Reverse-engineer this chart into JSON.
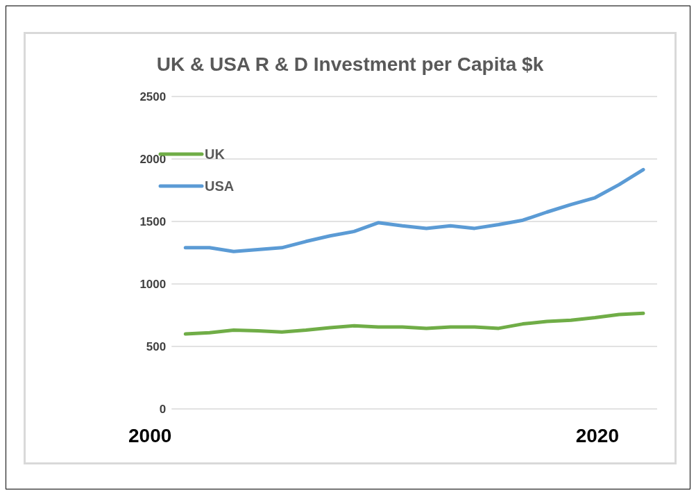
{
  "chart_data": {
    "type": "line",
    "title": "UK & USA R & D Investment per Capita $k",
    "categories": [
      null,
      null,
      null,
      null,
      null,
      null,
      null,
      null,
      null,
      null,
      null,
      null,
      null,
      null,
      null,
      null,
      null,
      null,
      null,
      null
    ],
    "series": [
      {
        "name": "UK",
        "color": "#70ad47",
        "values": [
          600,
          610,
          630,
          625,
          615,
          630,
          650,
          665,
          655,
          655,
          645,
          655,
          655,
          645,
          680,
          700,
          710,
          730,
          755,
          765
        ]
      },
      {
        "name": "USA",
        "color": "#5b9bd5",
        "values": [
          1290,
          1290,
          1260,
          1275,
          1290,
          1340,
          1385,
          1420,
          1490,
          1465,
          1445,
          1465,
          1445,
          1475,
          1510,
          1575,
          1635,
          1690,
          1795,
          1915
        ]
      }
    ],
    "ylim": [
      0,
      2500
    ],
    "yticks": [
      0,
      500,
      1000,
      1500,
      2000,
      2500
    ],
    "grid": "y",
    "legend": "top left",
    "marker": "none",
    "line_style": "solid",
    "annotations": [
      "2000",
      "2020"
    ]
  }
}
